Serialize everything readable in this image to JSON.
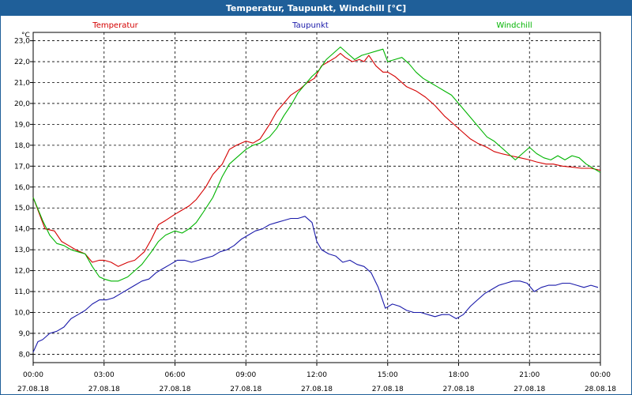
{
  "window": {
    "title": "Temperatur, Taupunkt, Windchill [°C]"
  },
  "chart_data": {
    "type": "line",
    "title": "Temperatur, Taupunkt, Windchill [°C]",
    "ylabel": "°C",
    "ylim": [
      7.6,
      23.4
    ],
    "yticks": [
      "8,0",
      "9,0",
      "10,0",
      "11,0",
      "12,0",
      "13,0",
      "14,0",
      "15,0",
      "16,0",
      "17,0",
      "18,0",
      "19,0",
      "20,0",
      "21,0",
      "22,0",
      "23,0"
    ],
    "xlim_hours": [
      0,
      24
    ],
    "xticks": [
      {
        "time": "00:00",
        "date": "27.08.18"
      },
      {
        "time": "03:00",
        "date": "27.08.18"
      },
      {
        "time": "06:00",
        "date": "27.08.18"
      },
      {
        "time": "09:00",
        "date": "27.08.18"
      },
      {
        "time": "12:00",
        "date": "27.08.18"
      },
      {
        "time": "15:00",
        "date": "27.08.18"
      },
      {
        "time": "18:00",
        "date": "27.08.18"
      },
      {
        "time": "21:00",
        "date": "27.08.18"
      },
      {
        "time": "00:00",
        "date": "28.08.18"
      }
    ],
    "grid": true,
    "legend_position": "top",
    "series": [
      {
        "name": "Temperatur",
        "color": "#d40000",
        "x": [
          0,
          0.5,
          0.9,
          1.2,
          1.5,
          1.8,
          2.2,
          2.5,
          2.8,
          3.0,
          3.3,
          3.6,
          4.0,
          4.3,
          4.7,
          5.0,
          5.3,
          5.6,
          6.0,
          6.3,
          6.6,
          6.9,
          7.3,
          7.6,
          8.0,
          8.3,
          8.6,
          9.0,
          9.3,
          9.6,
          10.0,
          10.3,
          10.6,
          10.9,
          11.3,
          11.6,
          11.9,
          12.2,
          12.5,
          12.8,
          13.0,
          13.2,
          13.5,
          13.8,
          14.0,
          14.2,
          14.5,
          14.8,
          15.0,
          15.3,
          15.5,
          15.8,
          16.2,
          16.6,
          17.0,
          17.4,
          17.8,
          18.2,
          18.5,
          18.8,
          19.2,
          19.5,
          19.8,
          20.2,
          20.6,
          21.0,
          21.3,
          21.7,
          22.0,
          22.4,
          22.8,
          23.2,
          23.6,
          24.0
        ],
        "y": [
          15.5,
          14.0,
          13.9,
          13.4,
          13.2,
          13.0,
          12.8,
          12.4,
          12.5,
          12.5,
          12.4,
          12.2,
          12.4,
          12.5,
          12.9,
          13.5,
          14.2,
          14.4,
          14.7,
          14.9,
          15.1,
          15.4,
          16.0,
          16.6,
          17.1,
          17.8,
          18.0,
          18.2,
          18.1,
          18.3,
          19.0,
          19.6,
          20.0,
          20.4,
          20.7,
          21.0,
          21.2,
          21.8,
          22.0,
          22.2,
          22.4,
          22.2,
          22.0,
          22.1,
          22.0,
          22.3,
          21.8,
          21.5,
          21.5,
          21.3,
          21.1,
          20.8,
          20.6,
          20.3,
          19.9,
          19.4,
          19.0,
          18.6,
          18.3,
          18.1,
          17.9,
          17.7,
          17.6,
          17.5,
          17.4,
          17.3,
          17.2,
          17.1,
          17.1,
          17.0,
          16.95,
          16.9,
          16.9,
          16.8
        ]
      },
      {
        "name": "Taupunkt",
        "color": "#1a1aaa",
        "x": [
          0,
          0.2,
          0.4,
          0.7,
          1.0,
          1.3,
          1.6,
          1.9,
          2.2,
          2.5,
          2.8,
          3.1,
          3.4,
          3.7,
          4.0,
          4.3,
          4.6,
          4.9,
          5.2,
          5.5,
          5.8,
          6.1,
          6.4,
          6.7,
          7.0,
          7.3,
          7.6,
          7.9,
          8.2,
          8.5,
          8.8,
          9.1,
          9.4,
          9.7,
          10.0,
          10.3,
          10.6,
          10.9,
          11.2,
          11.5,
          11.8,
          12.0,
          12.2,
          12.5,
          12.8,
          13.1,
          13.4,
          13.7,
          14.0,
          14.3,
          14.6,
          14.9,
          15.2,
          15.5,
          15.8,
          16.1,
          16.4,
          16.7,
          17.0,
          17.3,
          17.6,
          17.9,
          18.2,
          18.5,
          18.8,
          19.1,
          19.4,
          19.7,
          20.0,
          20.3,
          20.6,
          20.9,
          21.2,
          21.5,
          21.8,
          22.1,
          22.4,
          22.7,
          23.0,
          23.3,
          23.6,
          23.9
        ],
        "y": [
          8.1,
          8.6,
          8.7,
          9.0,
          9.1,
          9.3,
          9.7,
          9.9,
          10.1,
          10.4,
          10.6,
          10.6,
          10.7,
          10.9,
          11.1,
          11.3,
          11.5,
          11.6,
          11.9,
          12.1,
          12.3,
          12.5,
          12.5,
          12.4,
          12.5,
          12.6,
          12.7,
          12.9,
          13.0,
          13.2,
          13.5,
          13.7,
          13.9,
          14.0,
          14.2,
          14.3,
          14.4,
          14.5,
          14.5,
          14.6,
          14.3,
          13.4,
          13.0,
          12.8,
          12.7,
          12.4,
          12.5,
          12.3,
          12.2,
          11.9,
          11.2,
          10.2,
          10.4,
          10.3,
          10.1,
          10.0,
          10.0,
          9.9,
          9.8,
          9.9,
          9.9,
          9.7,
          9.9,
          10.3,
          10.6,
          10.9,
          11.1,
          11.3,
          11.4,
          11.5,
          11.5,
          11.4,
          11.0,
          11.2,
          11.3,
          11.3,
          11.4,
          11.4,
          11.3,
          11.2,
          11.3,
          11.2
        ]
      },
      {
        "name": "Windchill",
        "color": "#00b400",
        "x": [
          0,
          0.4,
          0.7,
          1.0,
          1.3,
          1.6,
          1.9,
          2.2,
          2.5,
          2.8,
          3.0,
          3.3,
          3.6,
          4.0,
          4.3,
          4.6,
          5.0,
          5.3,
          5.6,
          6.0,
          6.3,
          6.6,
          6.9,
          7.2,
          7.6,
          8.0,
          8.3,
          8.6,
          9.0,
          9.3,
          9.6,
          10.0,
          10.3,
          10.6,
          10.9,
          11.2,
          11.5,
          11.8,
          12.1,
          12.4,
          12.7,
          13.0,
          13.3,
          13.6,
          13.9,
          14.2,
          14.5,
          14.8,
          15.0,
          15.3,
          15.6,
          15.9,
          16.2,
          16.5,
          16.8,
          17.1,
          17.4,
          17.7,
          18.0,
          18.3,
          18.6,
          18.9,
          19.2,
          19.5,
          19.8,
          20.1,
          20.4,
          20.7,
          21.0,
          21.3,
          21.6,
          21.9,
          22.2,
          22.5,
          22.8,
          23.1,
          23.4,
          23.7,
          24.0
        ],
        "y": [
          15.5,
          14.4,
          13.7,
          13.3,
          13.2,
          13.0,
          12.9,
          12.8,
          12.2,
          11.7,
          11.6,
          11.5,
          11.5,
          11.7,
          12.0,
          12.3,
          12.9,
          13.4,
          13.7,
          13.9,
          13.8,
          14.0,
          14.3,
          14.8,
          15.5,
          16.5,
          17.1,
          17.4,
          17.8,
          18.0,
          18.1,
          18.4,
          18.8,
          19.4,
          19.9,
          20.5,
          20.9,
          21.3,
          21.6,
          22.1,
          22.4,
          22.7,
          22.4,
          22.1,
          22.3,
          22.4,
          22.5,
          22.6,
          22.0,
          22.1,
          22.2,
          21.9,
          21.5,
          21.2,
          21.0,
          20.8,
          20.6,
          20.4,
          20.0,
          19.6,
          19.2,
          18.8,
          18.4,
          18.2,
          17.9,
          17.6,
          17.3,
          17.6,
          17.9,
          17.6,
          17.4,
          17.3,
          17.5,
          17.3,
          17.5,
          17.4,
          17.1,
          16.9,
          16.7
        ]
      }
    ]
  }
}
